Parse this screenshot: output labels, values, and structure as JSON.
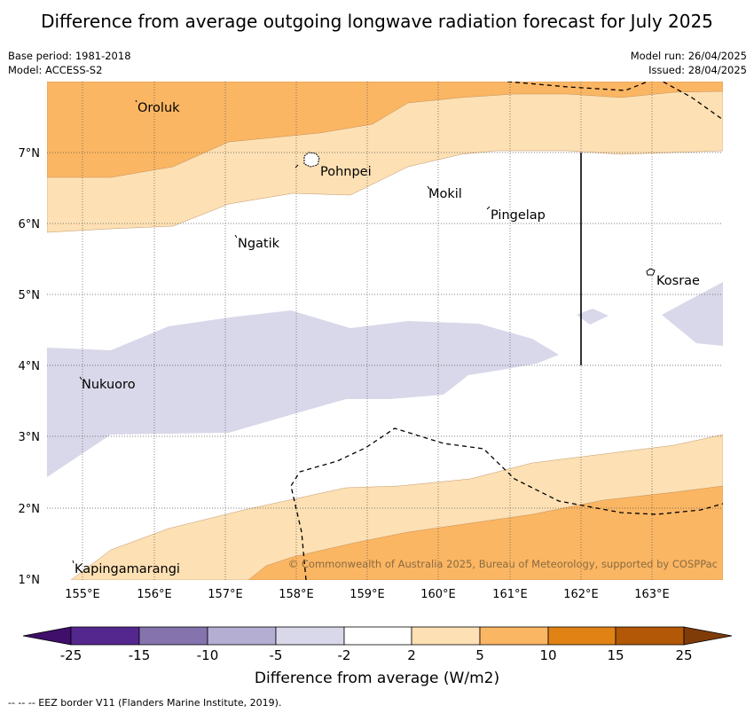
{
  "title": "Difference from average outgoing longwave radiation forecast for July 2025",
  "meta": {
    "base_period": "Base period: 1981-2018",
    "model": "Model: ACCESS-S2",
    "model_run": "Model run: 26/04/2025",
    "issued": "Issued: 28/04/2025"
  },
  "map": {
    "lat_labels": [
      "7°N",
      "6°N",
      "5°N",
      "4°N",
      "3°N",
      "2°N",
      "1°N"
    ],
    "lon_labels": [
      "155°E",
      "156°E",
      "157°E",
      "158°E",
      "159°E",
      "160°E",
      "161°E",
      "162°E",
      "163°E"
    ],
    "places": [
      {
        "name": "Oroluk"
      },
      {
        "name": "Pohnpei"
      },
      {
        "name": "Mokil"
      },
      {
        "name": "Pingelap"
      },
      {
        "name": "Ngatik"
      },
      {
        "name": "Kosrae"
      },
      {
        "name": "Nukuoro"
      },
      {
        "name": "Kapingamarangi"
      }
    ],
    "copyright": "© Commonwealth of Australia 2025, Bureau of Meteorology, supported by COSPPac",
    "colors": {
      "band_5_10": "#fbb663",
      "band_2_5": "#fde0b3",
      "band_neg5_neg2": "#d8d8ea",
      "eez_line": "#000000"
    }
  },
  "colorbar": {
    "title": "Difference from average (W/m2)",
    "ticks": [
      "-25",
      "-15",
      "-10",
      "-5",
      "-2",
      "2",
      "5",
      "10",
      "15",
      "25"
    ],
    "colors": [
      "#3f0f6b",
      "#54278f",
      "#8473ad",
      "#b4aed2",
      "#d8d8ea",
      "#ffffff",
      "#fde0b3",
      "#fbb663",
      "#e08214",
      "#b35806",
      "#7f3b08"
    ]
  },
  "footer": "-- -- -- EEZ border V11 (Flanders Marine Institute, 2019)."
}
